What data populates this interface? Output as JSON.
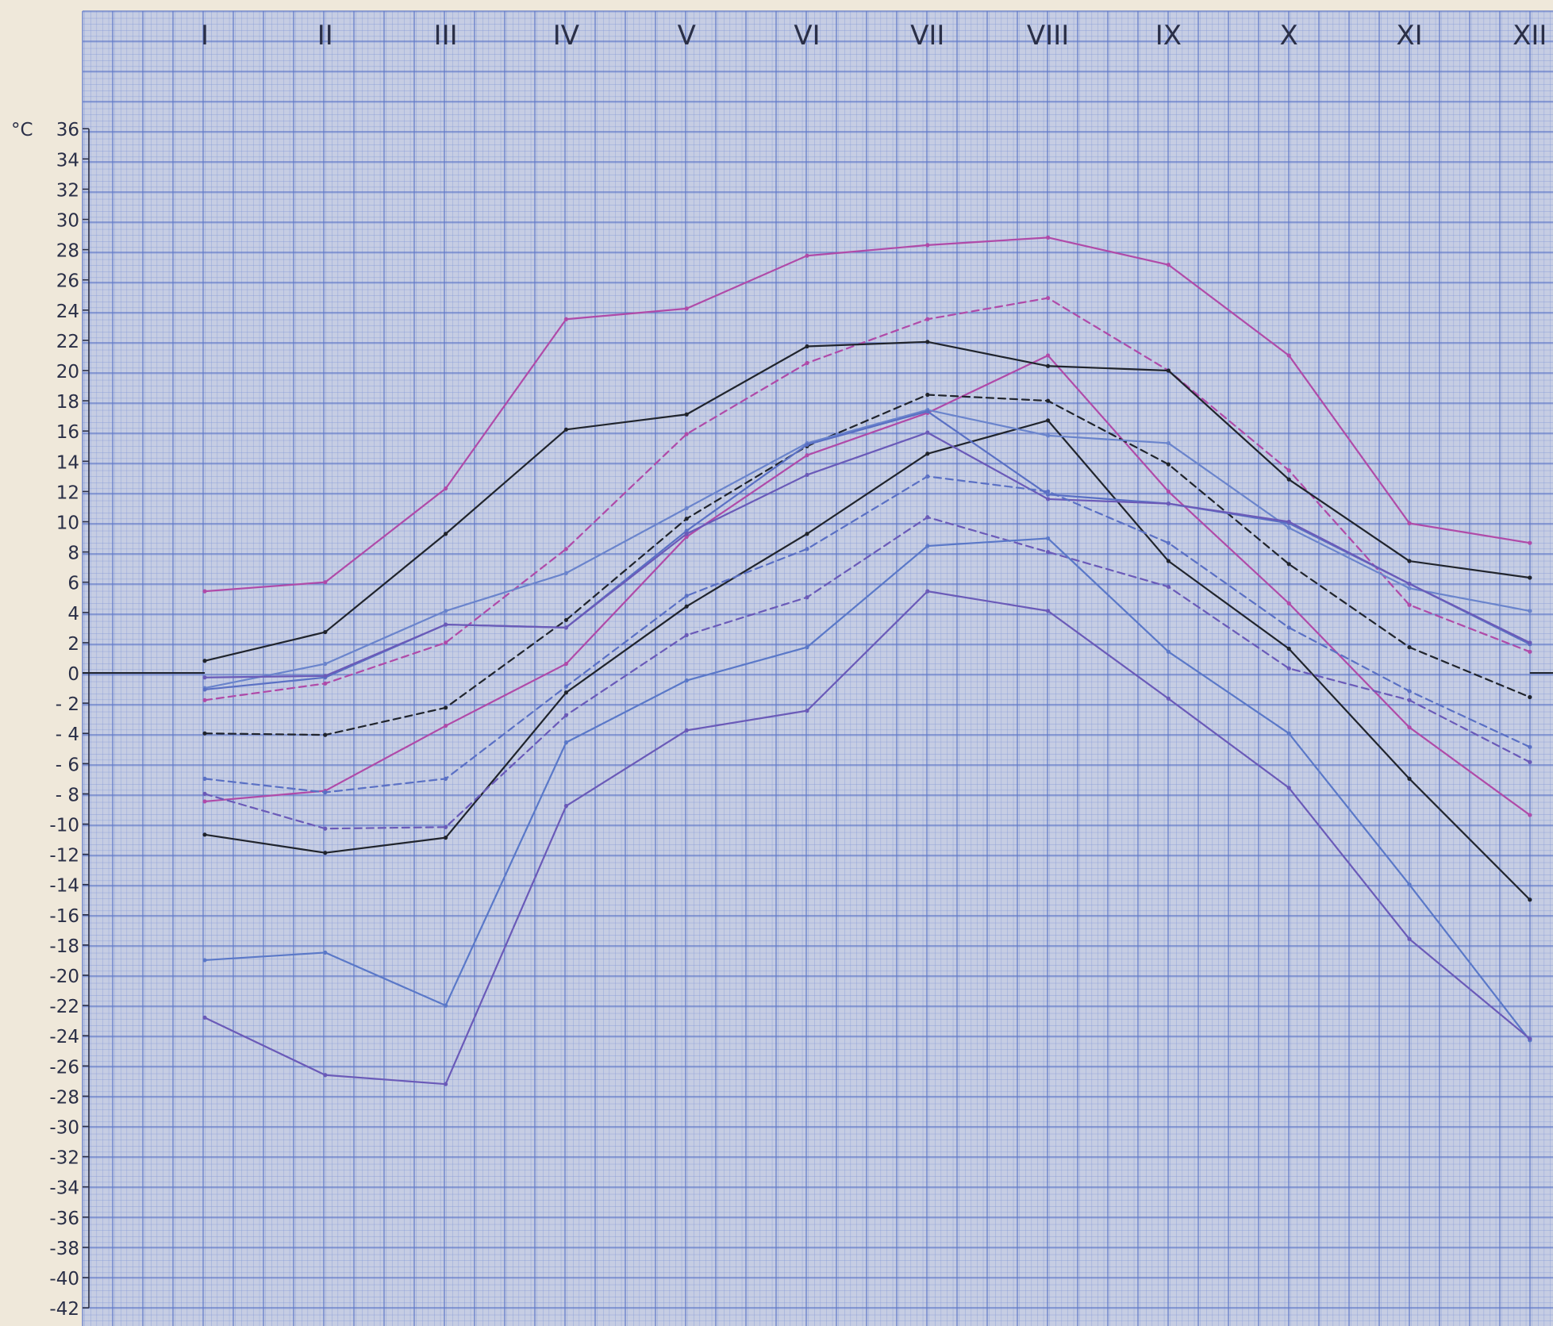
{
  "chart_data": {
    "type": "line",
    "title": "",
    "xlabel": "",
    "ylabel": "",
    "unit_label": "°C",
    "categories": [
      "I",
      "II",
      "III",
      "IV",
      "V",
      "VI",
      "VII",
      "VIII",
      "IX",
      "X",
      "XI",
      "XII"
    ],
    "yticks": [
      36,
      34,
      32,
      30,
      28,
      26,
      24,
      22,
      20,
      18,
      16,
      14,
      12,
      10,
      8,
      6,
      4,
      2,
      0,
      -2,
      -4,
      -6,
      -8,
      -10,
      -12,
      -14,
      -16,
      -18,
      -20,
      -22,
      -24,
      -26,
      -28,
      -30,
      -32,
      -34,
      -36,
      -38,
      -40,
      -42
    ],
    "ytick_labels": [
      "36",
      "34",
      "32",
      "30",
      "28",
      "26",
      "24",
      "22",
      "20",
      "18",
      "16",
      "14",
      "12",
      "10",
      "8",
      "6",
      "4",
      "2",
      "0",
      "- 2",
      "- 4",
      "- 6",
      "- 8",
      "-10",
      "-12",
      "-14",
      "-16",
      "-18",
      "-20",
      "-22",
      "-24",
      "-26",
      "-28",
      "-30",
      "-32",
      "-34",
      "-36",
      "-38",
      "-40",
      "-42"
    ],
    "ylim": [
      -43,
      36
    ],
    "grid": true,
    "legend": "none",
    "zero_line": true,
    "series": [
      {
        "color": "#b04aa8",
        "dash": false,
        "values": [
          5.4,
          6.0,
          12.2,
          23.4,
          24.1,
          27.6,
          28.3,
          28.8,
          27.0,
          21.0,
          9.9,
          8.6
        ]
      },
      {
        "color": "#b04aa8",
        "dash": true,
        "values": [
          -1.8,
          -0.7,
          2.0,
          8.2,
          15.8,
          20.5,
          23.4,
          24.8,
          20.0,
          13.4,
          4.5,
          1.4
        ]
      },
      {
        "color": "#b04aa8",
        "dash": false,
        "values": [
          -8.5,
          -7.8,
          -3.5,
          0.6,
          9.0,
          14.4,
          17.2,
          21.0,
          12.0,
          4.6,
          -3.6,
          -9.4
        ]
      },
      {
        "color": "#20242c",
        "dash": false,
        "values": [
          0.8,
          2.7,
          9.2,
          16.1,
          17.1,
          21.6,
          21.9,
          20.3,
          20.0,
          12.8,
          7.4,
          6.3
        ]
      },
      {
        "color": "#20242c",
        "dash": true,
        "values": [
          -4.0,
          -4.1,
          -2.3,
          3.5,
          10.2,
          15.0,
          18.4,
          18.0,
          13.8,
          7.2,
          1.7,
          -1.6
        ]
      },
      {
        "color": "#20242c",
        "dash": false,
        "values": [
          -10.7,
          -11.9,
          -10.9,
          -1.3,
          4.4,
          9.2,
          14.5,
          16.7,
          7.4,
          1.6,
          -7.0,
          -15.0
        ]
      },
      {
        "color": "#6a84cc",
        "dash": false,
        "values": [
          -1.0,
          0.6,
          4.1,
          6.6,
          10.9,
          15.2,
          17.4,
          15.7,
          15.2,
          9.6,
          5.6,
          4.1
        ]
      },
      {
        "color": "#5a70c4",
        "dash": false,
        "values": [
          -1.1,
          -0.3,
          3.2,
          3.0,
          9.4,
          15.1,
          17.3,
          11.8,
          11.2,
          9.9,
          5.9,
          1.9
        ]
      },
      {
        "color": "#6a5ab8",
        "dash": false,
        "values": [
          -0.3,
          -0.2,
          3.2,
          3.0,
          9.2,
          13.1,
          15.9,
          11.5,
          11.2,
          10.0,
          5.9,
          2.0
        ]
      },
      {
        "color": "#5a70c4",
        "dash": true,
        "values": [
          -7.0,
          -7.9,
          -7.0,
          -0.9,
          5.1,
          8.2,
          13.0,
          12.0,
          8.6,
          3.0,
          -1.2,
          -4.9
        ]
      },
      {
        "color": "#6a5ab8",
        "dash": true,
        "values": [
          -8.0,
          -10.3,
          -10.2,
          -2.8,
          2.5,
          5.0,
          10.3,
          8.0,
          5.7,
          0.3,
          -1.8,
          -5.9
        ]
      },
      {
        "color": "#5a78c8",
        "dash": false,
        "values": [
          -19.0,
          -18.5,
          -22.0,
          -4.6,
          -0.5,
          1.7,
          8.4,
          8.9,
          1.4,
          -4.0,
          -14.0,
          -24.3
        ]
      },
      {
        "color": "#6a5ab8",
        "dash": false,
        "values": [
          -22.8,
          -26.6,
          -27.2,
          -8.8,
          -3.8,
          -2.5,
          5.4,
          4.1,
          -1.7,
          -7.6,
          -17.6,
          -24.2
        ]
      }
    ]
  }
}
